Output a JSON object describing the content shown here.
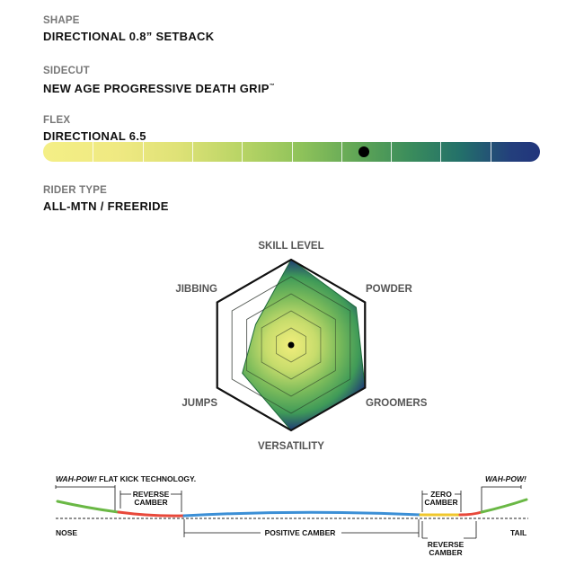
{
  "specs": {
    "shape": {
      "label": "SHAPE",
      "value": "DIRECTIONAL 0.8” SETBACK"
    },
    "sidecut": {
      "label": "SIDECUT",
      "value": "NEW AGE PROGRESSIVE DEATH GRIP",
      "trademark": "™"
    },
    "flex": {
      "label": "FLEX",
      "value": "DIRECTIONAL 6.5",
      "rating": 6.5,
      "scale_max": 10
    },
    "rider_type": {
      "label": "RIDER TYPE",
      "value": "ALL-MTN / FREERIDE"
    }
  },
  "radar": {
    "axes": [
      "SKILL LEVEL",
      "POWDER",
      "GROOMERS",
      "VERSATILITY",
      "JUMPS",
      "JIBBING"
    ],
    "levels": 5,
    "values": [
      5,
      4.4,
      5,
      5,
      3.3,
      2.4
    ],
    "colors": {
      "inner": "#f2ee7c",
      "mid": "#5cae56",
      "outer": "#1f3b75"
    }
  },
  "camber": {
    "labels": {
      "wah_pow_flat_kick_prefix": "WAH-POW!",
      "wah_pow_flat_kick_suffix": " FLAT KICK TECHNOLOGY.",
      "wah_pow_tail": "WAH-POW!",
      "reverse_camber_nose_line1": "REVERSE",
      "reverse_camber_nose_line2": "CAMBER",
      "zero_camber_line1": "ZERO",
      "zero_camber_line2": "CAMBER",
      "reverse_camber_tail_line1": "REVERSE",
      "reverse_camber_tail_line2": "CAMBER",
      "positive_camber": "POSITIVE CAMBER",
      "nose": "NOSE",
      "tail": "TAIL"
    },
    "colors": {
      "flat_kick": "#6ab845",
      "reverse": "#e8483a",
      "positive": "#3b8fd6",
      "zero": "#f0c72c"
    }
  }
}
